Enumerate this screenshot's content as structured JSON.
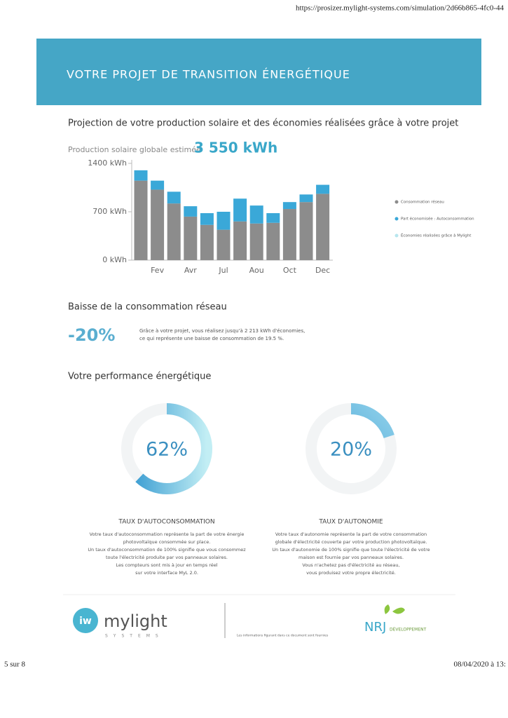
{
  "header": {
    "url": "https://prosizer.mylight-systems.com/simulation/2d66b865-4fc0-44",
    "title": "VOTRE PROJET DE TRANSITION ÉNERGÉTIQUE"
  },
  "chart_data": [
    {
      "type": "bar",
      "stacked": true,
      "title": "Projection de votre production solaire et des économies réalisées grâce à votre projet",
      "subtitle": "Production solaire globale estimée",
      "total": "3 550 kWh",
      "categories": [
        null,
        "Fev",
        null,
        "Avr",
        null,
        "Jul",
        null,
        "Aou",
        null,
        "Oct",
        null,
        "Dec"
      ],
      "series": [
        {
          "name": "Consommation réseau",
          "color": "#8c8c8c",
          "values": [
            1150,
            1020,
            820,
            630,
            510,
            440,
            560,
            530,
            540,
            740,
            840,
            960
          ]
        },
        {
          "name": "Part économisée : Autoconsommation",
          "color": "#3aa8d8",
          "values": [
            150,
            130,
            170,
            150,
            170,
            260,
            330,
            260,
            140,
            100,
            110,
            130
          ]
        },
        {
          "name": "Économies réalisées grâce à Mylight",
          "color": "#b7e6ee",
          "values": [
            0,
            0,
            0,
            0,
            0,
            0,
            0,
            0,
            0,
            0,
            0,
            0
          ]
        }
      ],
      "ylim": [
        0,
        1400
      ],
      "yticks": [
        {
          "value": 0,
          "label": "0 kWh"
        },
        {
          "value": 700,
          "label": "700 kWh"
        },
        {
          "value": 1400,
          "label": "1400 kWh"
        }
      ],
      "legend": "right"
    },
    {
      "type": "donut",
      "value": 62,
      "value_label": "62%",
      "color": "#2f96cf",
      "color_end": "#c2eef4",
      "label": "TAUX D'AUTOCONSOMMATION",
      "description": [
        "Votre taux d'autoconsommation représente la part de votre énergie",
        "photovoltaïque consommée sur place.",
        "Un taux d'autoconsommation de 100% signifie que vous consommez",
        "toute l'électricité produite par vos panneaux solaires.",
        "Les compteurs sont mis à jour en temps réel",
        "sur votre interface MyL 2.0."
      ]
    },
    {
      "type": "donut",
      "value": 20,
      "value_label": "20%",
      "color": "#2f96cf",
      "color_end": "#8fd0ea",
      "label": "TAUX D'AUTONOMIE",
      "description": [
        "Votre taux d'autonomie représente la part de votre consommation",
        "globale d'électricité couverte par votre production photovoltaïque.",
        "Un taux d'autonomie de 100% signifie que toute l'électricité de votre",
        "maison est fournie par vos panneaux solaires.",
        "Vous n'achetez pas d'électricité au réseau,",
        "vous produisez votre propre électricité."
      ]
    }
  ],
  "reduction": {
    "title": "Baisse de la consommation réseau",
    "value_label": "-20%",
    "text": [
      "Grâce à votre projet, vous réalisez jusqu'à 2 213 kWh d'économies,",
      "ce qui représente une baisse de consommation de 19.5 %."
    ]
  },
  "performance": {
    "title": "Votre performance énergétique"
  },
  "footer": {
    "brand": "mylight",
    "brand_sub": "SYSTEMS",
    "disclaimer": "Les informations figurant dans ce document sont fournies",
    "partner": "NRJ",
    "partner_sub": "DÉVELOPPEMENT",
    "page": "5 sur 8",
    "date": "08/04/2020 à 13:"
  }
}
